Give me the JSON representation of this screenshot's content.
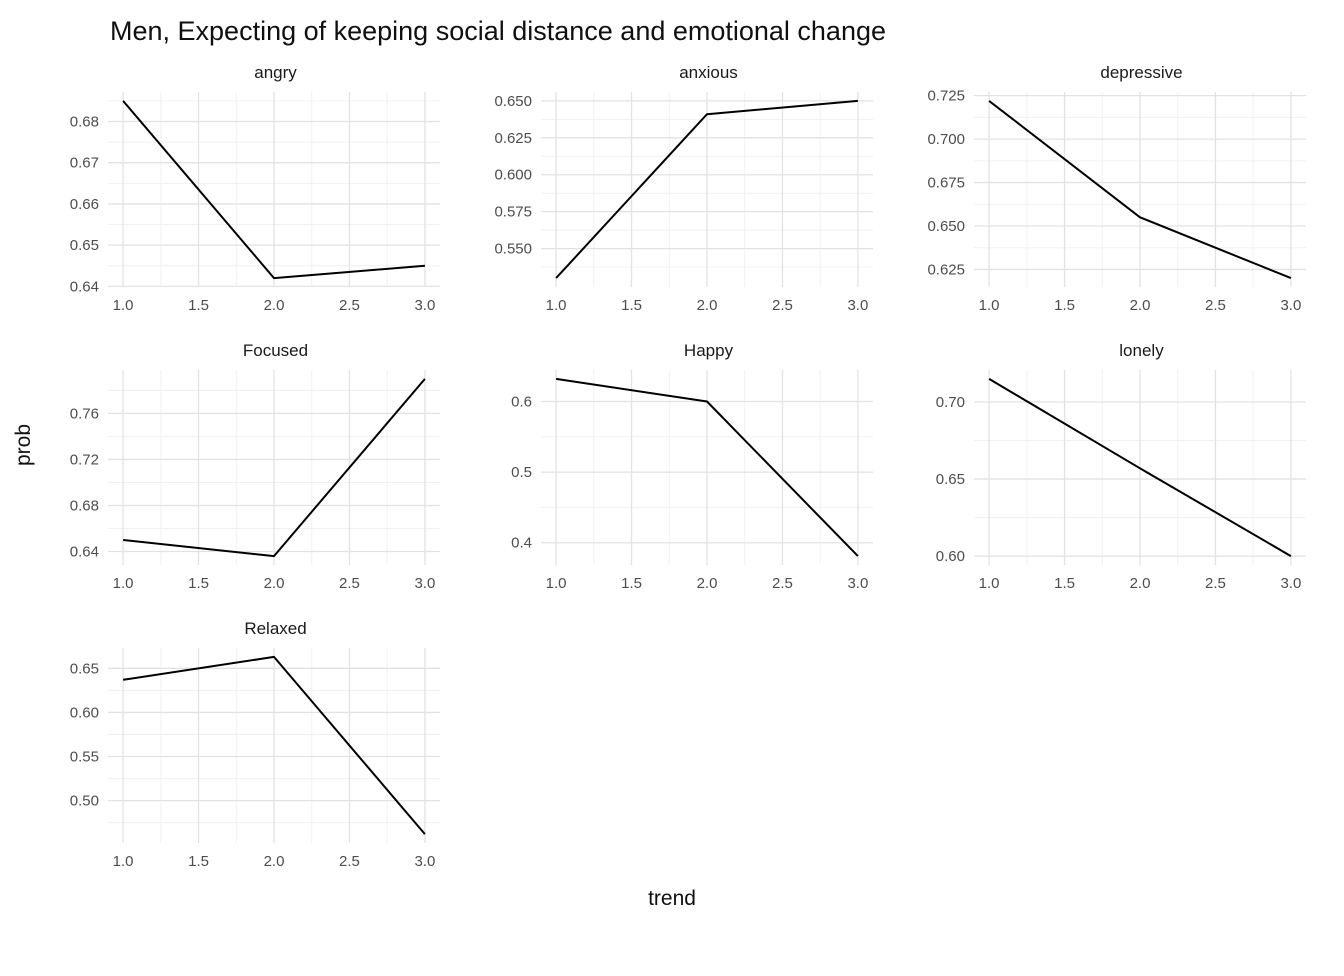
{
  "title": "Men, Expecting of keeping social distance and emotional change",
  "axes": {
    "xlabel": "trend",
    "ylabel": "prob"
  },
  "x_axis": {
    "limits": [
      0.9,
      3.1
    ],
    "ticks": [
      1.0,
      1.5,
      2.0,
      2.5,
      3.0
    ],
    "labels": [
      "1.0",
      "1.5",
      "2.0",
      "2.5",
      "3.0"
    ],
    "minor": [
      1.25,
      1.75,
      2.25,
      2.75
    ]
  },
  "style": {
    "background": "#ffffff",
    "line_color": "#000000",
    "grid_major": "#e2e2e2",
    "grid_minor": "#f0f0f0",
    "tick_label_color": "#4d4d4d",
    "text_color": "#1a1a1a"
  },
  "chart_data": [
    {
      "type": "line",
      "facet": "angry",
      "x": [
        1,
        2,
        3
      ],
      "y": [
        0.685,
        0.642,
        0.645
      ],
      "yticks": [
        0.64,
        0.65,
        0.66,
        0.67,
        0.68
      ],
      "ytick_labels": [
        "0.64",
        "0.65",
        "0.66",
        "0.67",
        "0.68"
      ]
    },
    {
      "type": "line",
      "facet": "anxious",
      "x": [
        1,
        2,
        3
      ],
      "y": [
        0.53,
        0.641,
        0.65
      ],
      "yticks": [
        0.55,
        0.575,
        0.6,
        0.625,
        0.65
      ],
      "ytick_labels": [
        "0.550",
        "0.575",
        "0.600",
        "0.625",
        "0.650"
      ]
    },
    {
      "type": "line",
      "facet": "depressive",
      "x": [
        1,
        2,
        3
      ],
      "y": [
        0.722,
        0.655,
        0.62
      ],
      "yticks": [
        0.625,
        0.65,
        0.675,
        0.7,
        0.725
      ],
      "ytick_labels": [
        "0.625",
        "0.650",
        "0.675",
        "0.700",
        "0.725"
      ]
    },
    {
      "type": "line",
      "facet": "Focused",
      "x": [
        1,
        2,
        3
      ],
      "y": [
        0.65,
        0.636,
        0.79
      ],
      "yticks": [
        0.64,
        0.68,
        0.72,
        0.76
      ],
      "ytick_labels": [
        "0.64",
        "0.68",
        "0.72",
        "0.76"
      ]
    },
    {
      "type": "line",
      "facet": "Happy",
      "x": [
        1,
        2,
        3
      ],
      "y": [
        0.632,
        0.6,
        0.381
      ],
      "yticks": [
        0.4,
        0.5,
        0.6
      ],
      "ytick_labels": [
        "0.4",
        "0.5",
        "0.6"
      ]
    },
    {
      "type": "line",
      "facet": "lonely",
      "x": [
        1,
        2,
        3
      ],
      "y": [
        0.715,
        0.657,
        0.6
      ],
      "yticks": [
        0.6,
        0.65,
        0.7
      ],
      "ytick_labels": [
        "0.60",
        "0.65",
        "0.70"
      ]
    },
    {
      "type": "line",
      "facet": "Relaxed",
      "x": [
        1,
        2,
        3
      ],
      "y": [
        0.637,
        0.663,
        0.462
      ],
      "yticks": [
        0.5,
        0.55,
        0.6,
        0.65
      ],
      "ytick_labels": [
        "0.50",
        "0.55",
        "0.60",
        "0.65"
      ]
    }
  ]
}
